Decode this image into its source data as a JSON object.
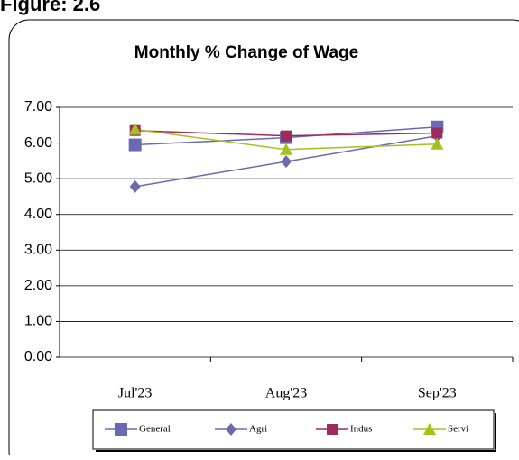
{
  "figure_label": "Figure: 2.6",
  "chart_data": {
    "type": "line",
    "title": "Monthly % Change of Wage",
    "categories": [
      "Jul'23",
      "Aug'23",
      "Sep'23"
    ],
    "series": [
      {
        "name": "General",
        "color": "#6a6ab4",
        "marker": "square",
        "values": [
          5.95,
          6.15,
          6.45
        ]
      },
      {
        "name": "Agri",
        "color": "#6b6bab",
        "marker": "diamond",
        "values": [
          4.78,
          5.48,
          6.2
        ]
      },
      {
        "name": "Indus",
        "color": "#9b2d5e",
        "marker": "square-small",
        "values": [
          6.35,
          6.2,
          6.28
        ]
      },
      {
        "name": "Servi",
        "color": "#a6c01e",
        "marker": "triangle",
        "values": [
          6.38,
          5.82,
          5.97
        ]
      }
    ],
    "ylim": [
      0,
      7
    ],
    "yticks": [
      {
        "value": 0,
        "label": "0.00"
      },
      {
        "value": 1,
        "label": "1.00"
      },
      {
        "value": 2,
        "label": "2.00"
      },
      {
        "value": 3,
        "label": "3.00"
      },
      {
        "value": 4,
        "label": "4.00"
      },
      {
        "value": 5,
        "label": "5.00"
      },
      {
        "value": 6,
        "label": "6.00"
      },
      {
        "value": 7,
        "label": "7.00"
      }
    ],
    "grid": true,
    "legend": "bottom"
  }
}
